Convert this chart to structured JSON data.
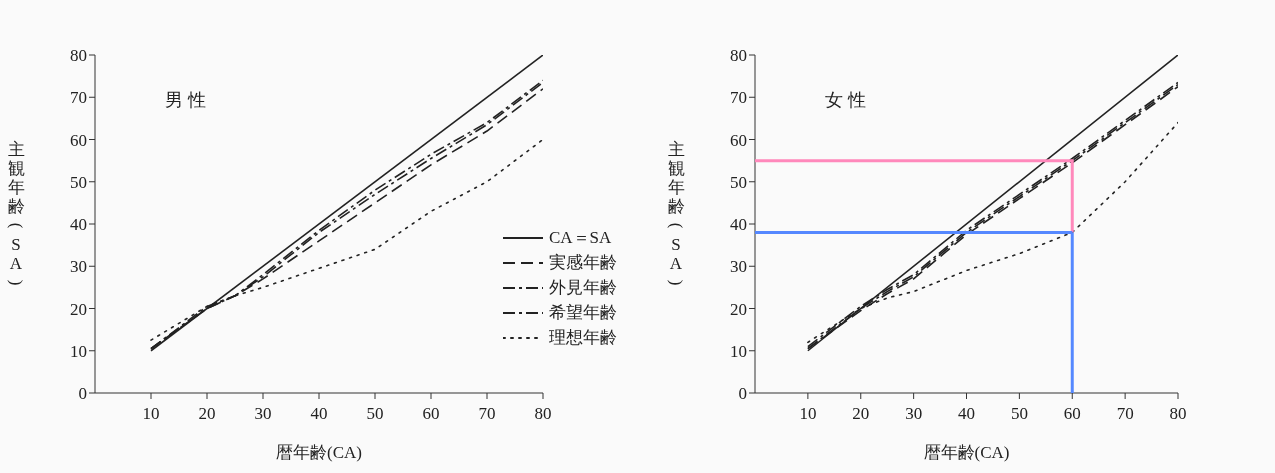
{
  "chart_data": [
    {
      "type": "line",
      "title": "男 性",
      "xlabel": "暦年齢(CA)",
      "ylabel": "主観年齢(SA)",
      "xlim": [
        0,
        80
      ],
      "ylim": [
        0,
        80
      ],
      "xticks": [
        10,
        20,
        30,
        40,
        50,
        60,
        70,
        80
      ],
      "yticks": [
        0,
        10,
        20,
        30,
        40,
        50,
        60,
        70,
        80
      ],
      "legend": "right",
      "series": [
        {
          "name": "CA＝SA",
          "color": "#222222",
          "line_style": "solid",
          "x": [
            10,
            80
          ],
          "values": [
            10,
            80
          ]
        },
        {
          "name": "実感年齢",
          "color": "#222222",
          "line_style": "dashed",
          "x": [
            10,
            20,
            25,
            30,
            40,
            50,
            60,
            70,
            80
          ],
          "values": [
            10.5,
            20,
            23,
            27,
            36,
            45,
            54,
            62,
            72
          ]
        },
        {
          "name": "外見年齢",
          "color": "#222222",
          "line_style": "dashdot",
          "x": [
            10,
            20,
            25,
            30,
            40,
            50,
            60,
            70,
            80
          ],
          "values": [
            10.5,
            20,
            23,
            27.5,
            38,
            47,
            55.5,
            63.5,
            73.5
          ]
        },
        {
          "name": "希望年齢",
          "color": "#222222",
          "line_style": "dashdot",
          "x": [
            10,
            20,
            25,
            30,
            40,
            50,
            60,
            70,
            80
          ],
          "values": [
            10.5,
            20.5,
            23,
            28,
            38.5,
            48,
            56.5,
            64,
            74
          ]
        },
        {
          "name": "理想年齢",
          "color": "#222222",
          "line_style": "dotted",
          "x": [
            10,
            20,
            25,
            30,
            40,
            50,
            60,
            70,
            80
          ],
          "values": [
            12.5,
            20.5,
            23,
            25,
            29.5,
            34,
            43,
            50,
            60
          ]
        }
      ]
    },
    {
      "type": "line",
      "title": "女 性",
      "xlabel": "暦年齢(CA)",
      "ylabel": "主観年齢(SA)",
      "xlim": [
        0,
        80
      ],
      "ylim": [
        0,
        80
      ],
      "xticks": [
        10,
        20,
        30,
        40,
        50,
        60,
        70,
        80
      ],
      "yticks": [
        0,
        10,
        20,
        30,
        40,
        50,
        60,
        70,
        80
      ],
      "series": [
        {
          "color": "#222222",
          "line_style": "solid",
          "x": [
            10,
            80
          ],
          "values": [
            10,
            80
          ]
        },
        {
          "color": "#222222",
          "line_style": "dashed",
          "x": [
            10,
            20,
            25,
            30,
            40,
            50,
            60,
            70,
            80
          ],
          "values": [
            10.5,
            19.5,
            23.5,
            27,
            37.5,
            46,
            54.5,
            63.5,
            72.5
          ]
        },
        {
          "color": "#222222",
          "line_style": "dashdot",
          "x": [
            10,
            20,
            25,
            30,
            40,
            50,
            60,
            70,
            80
          ],
          "values": [
            10.5,
            20,
            24,
            27.5,
            38,
            46.5,
            55,
            64,
            73
          ]
        },
        {
          "color": "#222222",
          "line_style": "dashdot",
          "x": [
            10,
            20,
            25,
            30,
            40,
            50,
            60,
            70,
            80
          ],
          "values": [
            11,
            20.5,
            24.5,
            28,
            38.5,
            47,
            55.5,
            64.5,
            73.5
          ]
        },
        {
          "color": "#222222",
          "line_style": "dotted",
          "x": [
            10,
            20,
            25,
            30,
            40,
            50,
            60,
            70,
            80
          ],
          "values": [
            12,
            20,
            22.5,
            24,
            29,
            33,
            38,
            50,
            64
          ]
        }
      ],
      "ref_lines": [
        {
          "axis": "y",
          "value": 55,
          "color": "#ff88bb"
        },
        {
          "axis": "y",
          "value": 38,
          "color": "#5588ff"
        },
        {
          "axis": "x",
          "value": 60,
          "color": "#5588ff"
        }
      ]
    }
  ]
}
